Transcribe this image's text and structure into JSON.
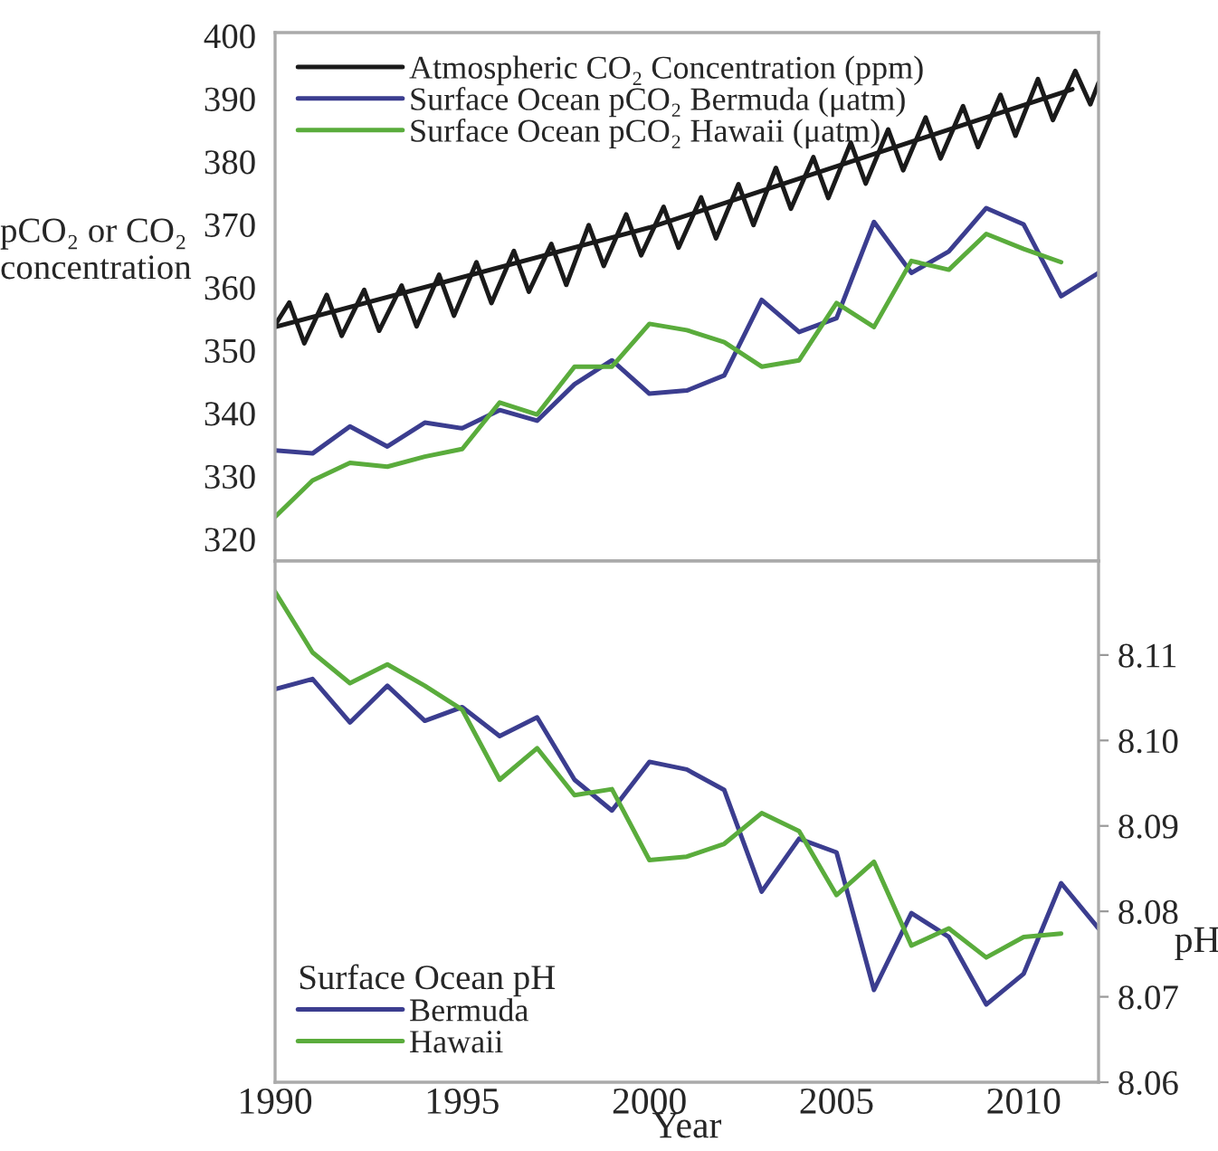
{
  "chart_data": [
    {
      "type": "line",
      "ylabel": "pCO₂ or CO₂\nconcentration",
      "xlim": [
        1990,
        2012
      ],
      "xticks": [
        1990,
        1995,
        2000,
        2005,
        2010
      ],
      "ylim": [
        316.5,
        400.5
      ],
      "yticks": [
        320,
        330,
        340,
        350,
        360,
        370,
        380,
        390,
        400
      ],
      "tick_labels": "y",
      "grid": false,
      "legend": "top left",
      "series": [
        {
          "name": "Atmospheric CO₂ Concentration (ppm)",
          "color": "#1a1a1a",
          "x": [
            1990.0,
            1990.38,
            1990.78,
            1991.38,
            1991.78,
            1992.38,
            1992.78,
            1993.38,
            1993.78,
            1994.38,
            1994.78,
            1995.38,
            1995.78,
            1996.38,
            1996.78,
            1997.38,
            1997.78,
            1998.38,
            1998.78,
            1999.38,
            1999.78,
            2000.38,
            2000.78,
            2001.38,
            2001.78,
            2002.38,
            2002.78,
            2003.38,
            2003.78,
            2004.38,
            2004.78,
            2005.38,
            2005.78,
            2006.38,
            2006.78,
            2007.38,
            2007.78,
            2008.38,
            2008.78,
            2009.38,
            2009.78,
            2010.38,
            2010.78,
            2011.38,
            2011.78,
            2012.0
          ],
          "values": [
            354.0,
            357.6,
            351.1,
            358.8,
            352.3,
            359.6,
            353.1,
            360.3,
            353.8,
            362.0,
            355.5,
            364.0,
            357.5,
            365.8,
            359.3,
            366.9,
            360.4,
            369.9,
            363.4,
            371.6,
            365.1,
            372.8,
            366.3,
            374.3,
            367.8,
            376.4,
            369.9,
            379.0,
            372.5,
            380.7,
            374.2,
            383.0,
            376.5,
            385.1,
            378.6,
            387.0,
            380.5,
            388.8,
            382.3,
            390.6,
            384.1,
            393.1,
            386.6,
            394.4,
            389.1,
            392.5
          ]
        },
        {
          "color": "#1a1a1a",
          "x": [
            1990,
            2000,
            2011.3
          ],
          "values": [
            353.7,
            369.5,
            391.5
          ]
        },
        {
          "name": "Surface Ocean pCO₂ Bermuda (μatm)",
          "color": "#3b3d8f",
          "x": [
            1990,
            1991,
            1992,
            1993,
            1994,
            1995,
            1996,
            1997,
            1998,
            1999,
            2000,
            2001,
            2002,
            2003,
            2004,
            2005,
            2006,
            2007,
            2008,
            2009,
            2010,
            2011,
            2012
          ],
          "values": [
            334.1,
            333.6,
            337.9,
            334.7,
            338.5,
            337.6,
            340.5,
            338.8,
            344.6,
            348.4,
            343.1,
            343.6,
            346.0,
            358.0,
            352.9,
            355.1,
            370.4,
            362.3,
            365.7,
            372.6,
            370.0,
            358.6,
            362.3
          ]
        },
        {
          "name": "Surface Ocean pCO₂ Hawaii (μatm)",
          "color": "#5aac3c",
          "x": [
            1990,
            1991,
            1992,
            1993,
            1994,
            1995,
            1996,
            1997,
            1998,
            1999,
            2000,
            2001,
            2002,
            2003,
            2004,
            2005,
            2006,
            2007,
            2008,
            2009,
            2010,
            2011
          ],
          "values": [
            323.5,
            329.3,
            332.1,
            331.5,
            333.1,
            334.3,
            341.7,
            339.8,
            347.4,
            347.4,
            354.2,
            353.2,
            351.3,
            347.4,
            348.4,
            357.5,
            353.7,
            364.2,
            362.8,
            368.5,
            366.1,
            364.0
          ]
        }
      ]
    },
    {
      "type": "line",
      "xlabel": "Year",
      "ylabel": "pH",
      "legend_title": "Surface Ocean pH",
      "xlim": [
        1990,
        2012
      ],
      "xticks": [
        1990,
        1995,
        2000,
        2005,
        2010
      ],
      "ylim": [
        8.06,
        8.121
      ],
      "yticks": [
        8.06,
        8.07,
        8.08,
        8.09,
        {
          "value": 8.1,
          "label": "8.10"
        },
        8.11
      ],
      "grid": false,
      "legend": "bottom left",
      "x": [
        1990,
        1991,
        1992,
        1993,
        1994,
        1995,
        1996,
        1997,
        1998,
        1999,
        2000,
        2001,
        2002,
        2003,
        2004,
        2005,
        2006,
        2007,
        2008,
        2009,
        2010,
        2011,
        2012
      ],
      "series": [
        {
          "name": "Bermuda",
          "color": "#3b3d8f",
          "values": [
            8.106,
            8.1072,
            8.1021,
            8.1064,
            8.1023,
            8.1039,
            8.1005,
            8.1027,
            8.0954,
            8.0918,
            8.0975,
            8.0966,
            8.0942,
            8.0823,
            8.0885,
            8.0869,
            8.0708,
            8.0798,
            8.077,
            8.0691,
            8.0727,
            8.0833,
            8.078
          ]
        },
        {
          "name": "Hawaii",
          "color": "#5aac3c",
          "values": [
            8.1174,
            8.1103,
            8.1067,
            8.1089,
            8.1064,
            8.1036,
            8.0954,
            8.0991,
            8.0936,
            8.0943,
            8.086,
            8.0864,
            8.0879,
            8.0915,
            8.0894,
            8.0819,
            8.0858,
            8.076,
            8.078,
            8.0746,
            8.077,
            8.0774,
            null
          ]
        }
      ]
    }
  ]
}
